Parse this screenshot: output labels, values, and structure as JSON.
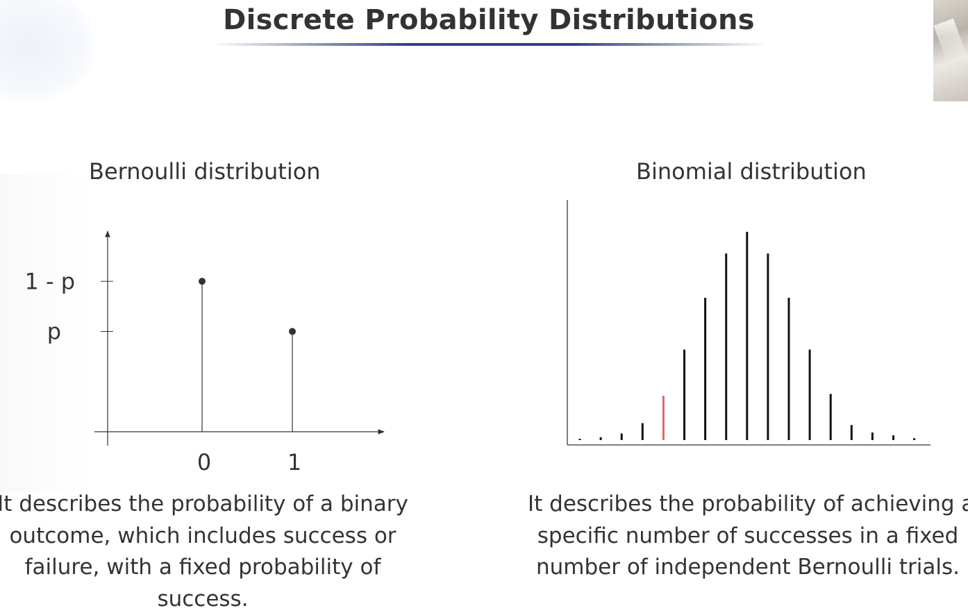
{
  "slide": {
    "title": "Discrete Probability Distributions"
  },
  "bernoulli": {
    "heading": "Bernoulli distribution",
    "y_tick_labels": [
      "1 - p",
      "p"
    ],
    "x_tick_labels": [
      "0",
      "1"
    ],
    "description_lines": [
      "It describes the probability of a binary",
      "outcome, which includes success or",
      "failure, with a fixed probability of",
      "success."
    ]
  },
  "binomial": {
    "heading": "Binomial distribution",
    "description_lines": [
      "It describes the probability of achieving a",
      "specific number of successes in a fixed",
      "number of independent Bernoulli trials."
    ]
  },
  "colors": {
    "text": "#333333",
    "title_underline": "#2b3f95",
    "stem": "#111111",
    "highlight_stem": "#e06666"
  },
  "chart_data": [
    {
      "type": "bar",
      "name": "Bernoulli distribution",
      "categories": [
        "0",
        "1"
      ],
      "values": [
        0.6,
        0.4
      ],
      "value_labels": [
        "1 - p",
        "p"
      ],
      "markers": "dot",
      "ylim": [
        0,
        0.8
      ]
    },
    {
      "type": "bar",
      "name": "Binomial distribution",
      "values": [
        0.1,
        0.3,
        0.7,
        1.8,
        4.7,
        9.6,
        15.1,
        19.8,
        22.1,
        19.8,
        15.1,
        9.6,
        4.9,
        1.6,
        0.8,
        0.5,
        0.2
      ],
      "highlight_index": 4,
      "ylim": [
        0,
        25
      ]
    }
  ]
}
